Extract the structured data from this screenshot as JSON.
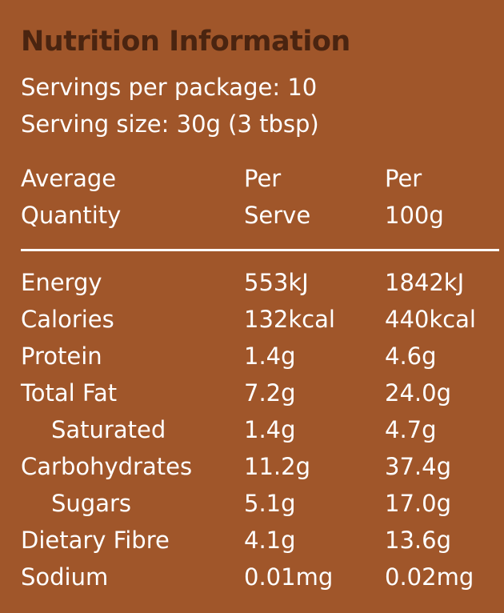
{
  "panel": {
    "title": "Nutrition Information",
    "servings": "Servings per package: 10",
    "serving_size": "Serving size: 30g (3 tbsp)",
    "colors": {
      "background": "#a0562a",
      "title": "#4a2410",
      "text": "#ffffff"
    }
  },
  "table": {
    "headers": {
      "col1_line1": "Average",
      "col1_line2": "Quantity",
      "col2_line1": "Per",
      "col2_line2": "Serve",
      "col3_line1": "Per",
      "col3_line2": "100g"
    },
    "rows": [
      {
        "name": "Energy",
        "serve": "553kJ",
        "per100": "1842kJ",
        "sub": false
      },
      {
        "name": "Calories",
        "serve": "132kcal",
        "per100": "440kcal",
        "sub": false
      },
      {
        "name": "Protein",
        "serve": "1.4g",
        "per100": "4.6g",
        "sub": false
      },
      {
        "name": "Total Fat",
        "serve": "7.2g",
        "per100": "24.0g",
        "sub": false
      },
      {
        "name": "Saturated",
        "serve": "1.4g",
        "per100": "4.7g",
        "sub": true
      },
      {
        "name": "Carbohydrates",
        "serve": "11.2g",
        "per100": "37.4g",
        "sub": false
      },
      {
        "name": "Sugars",
        "serve": "5.1g",
        "per100": "17.0g",
        "sub": true
      },
      {
        "name": "Dietary Fibre",
        "serve": "4.1g",
        "per100": "13.6g",
        "sub": false
      },
      {
        "name": "Sodium",
        "serve": "0.01mg",
        "per100": "0.02mg",
        "sub": false
      }
    ]
  }
}
